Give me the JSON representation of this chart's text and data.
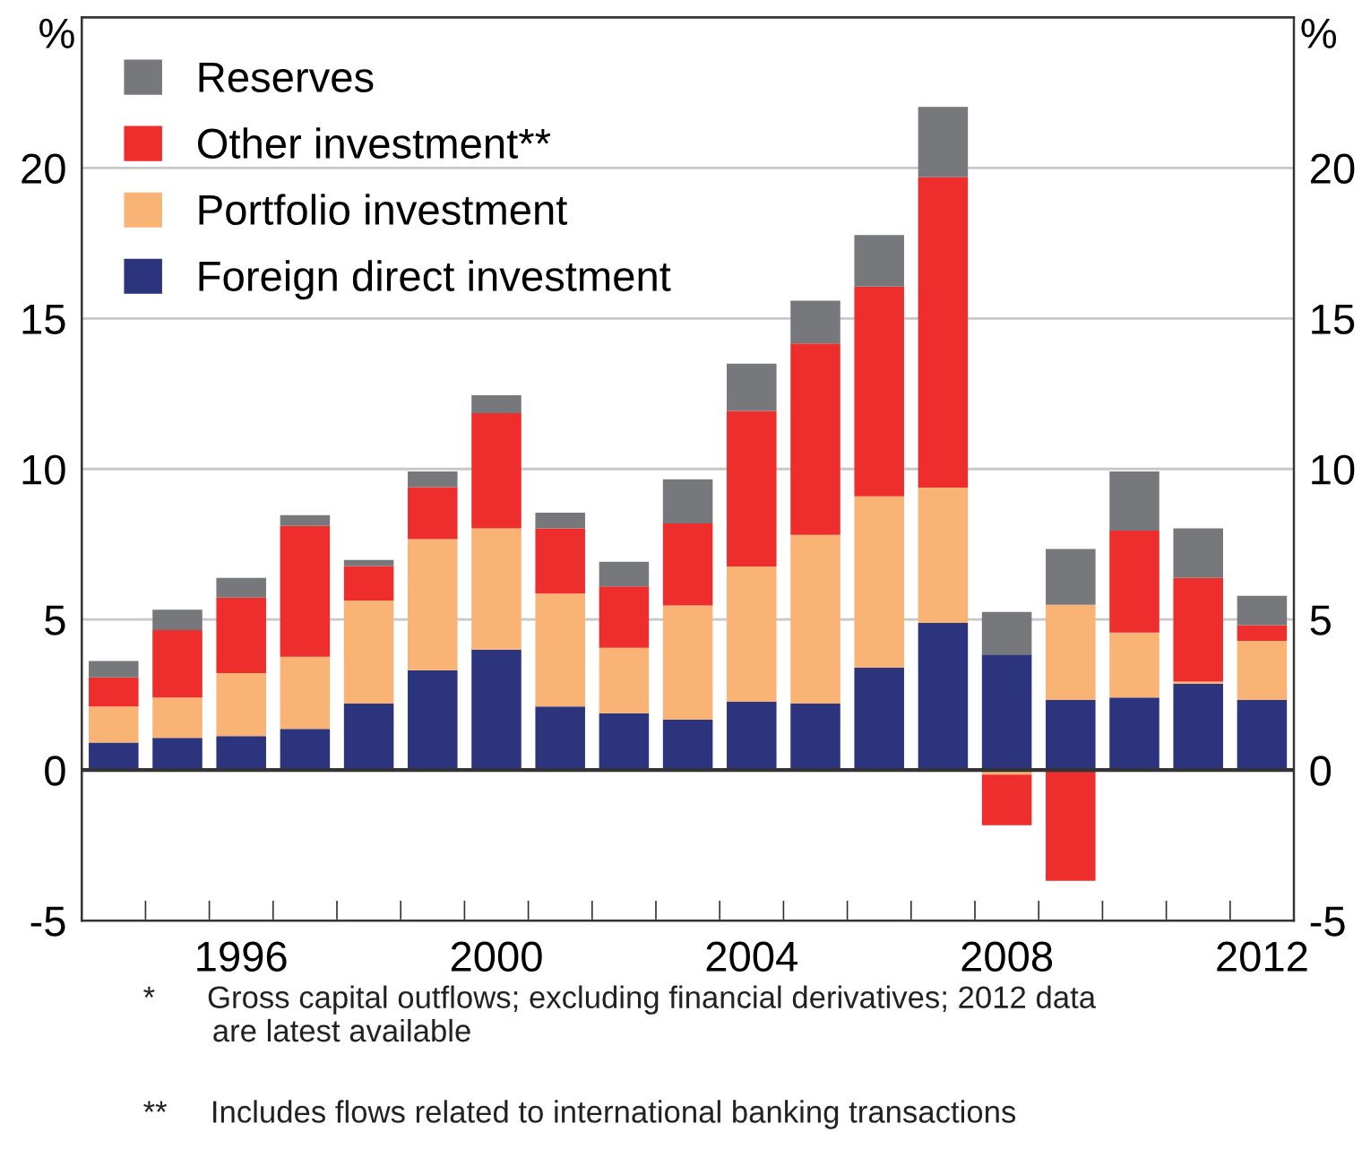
{
  "chart_data": {
    "type": "bar",
    "stacked": true,
    "categories": [
      null,
      null,
      "1996",
      null,
      null,
      null,
      "2000",
      null,
      null,
      null,
      "2004",
      null,
      null,
      null,
      "2008",
      null,
      null,
      null,
      "2012"
    ],
    "series": [
      {
        "name": "Foreign direct investment",
        "color": "#2b347c",
        "values": [
          0.91,
          1.07,
          1.13,
          1.37,
          2.21,
          3.32,
          4.0,
          2.11,
          1.89,
          1.67,
          2.27,
          2.21,
          3.4,
          4.89,
          3.84,
          2.33,
          2.41,
          2.86,
          2.33
        ]
      },
      {
        "name": "Portfolio investment",
        "color": "#f9b375",
        "values": [
          1.2,
          1.34,
          2.09,
          2.39,
          3.42,
          4.35,
          4.03,
          3.75,
          2.17,
          3.8,
          4.49,
          5.6,
          5.69,
          4.49,
          -0.15,
          3.16,
          2.16,
          0.08,
          1.96
        ]
      },
      {
        "name": "Other investment**",
        "color": "#ee2d2d",
        "values": [
          0.97,
          2.24,
          2.51,
          4.35,
          1.15,
          1.73,
          3.82,
          2.17,
          2.04,
          2.72,
          5.17,
          6.36,
          6.97,
          10.32,
          -1.68,
          -3.68,
          3.38,
          3.44,
          0.52
        ]
      },
      {
        "name": "Reserves",
        "color": "#76787b",
        "values": [
          0.54,
          0.68,
          0.65,
          0.36,
          0.2,
          0.52,
          0.6,
          0.52,
          0.82,
          1.47,
          1.57,
          1.42,
          1.71,
          2.33,
          1.41,
          1.85,
          1.97,
          1.65,
          0.98
        ]
      }
    ],
    "ylabel": "%",
    "y2label": "%",
    "ylim": [
      -5,
      25
    ],
    "yticks": [
      -5,
      0,
      5,
      10,
      15,
      20
    ],
    "y2lim": [
      -5,
      25
    ],
    "y2ticks": [
      -5,
      0,
      5,
      10,
      15,
      20
    ],
    "grid": "y",
    "legend": "top left",
    "ref_lines": [
      {
        "axis": "y",
        "value": 0,
        "color": "#333333"
      }
    ],
    "annotations": [
      "*      Gross capital outflows; excluding financial derivatives; 2012 data\n        are latest available",
      "**     Includes flows related to international banking transactions"
    ]
  }
}
